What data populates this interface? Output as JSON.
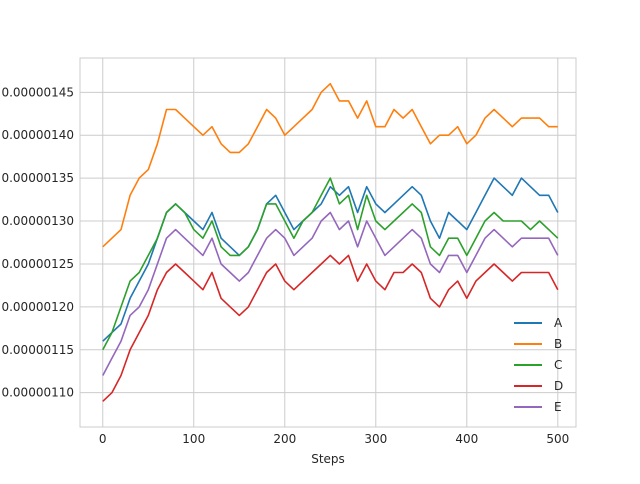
{
  "chart_data": {
    "type": "line",
    "title": "",
    "xlabel": "Steps",
    "ylabel": "",
    "xlim": [
      -25,
      520
    ],
    "ylim": [
      1.06e-06,
      1.49e-06
    ],
    "grid": true,
    "legend_position": "lower right",
    "x_ticks": [
      {
        "value": 0,
        "label": "0"
      },
      {
        "value": 100,
        "label": "100"
      },
      {
        "value": 200,
        "label": "200"
      },
      {
        "value": 300,
        "label": "300"
      },
      {
        "value": 400,
        "label": "400"
      },
      {
        "value": 500,
        "label": "500"
      }
    ],
    "y_ticks": [
      {
        "value": 1.1e-06,
        "label": "0.00000110"
      },
      {
        "value": 1.15e-06,
        "label": "0.00000115"
      },
      {
        "value": 1.2e-06,
        "label": "0.00000120"
      },
      {
        "value": 1.25e-06,
        "label": "0.00000125"
      },
      {
        "value": 1.3e-06,
        "label": "0.00000130"
      },
      {
        "value": 1.35e-06,
        "label": "0.00000135"
      },
      {
        "value": 1.4e-06,
        "label": "0.00000140"
      },
      {
        "value": 1.45e-06,
        "label": "0.00000145"
      }
    ],
    "series": [
      {
        "name": "A",
        "color": "#1f77b4",
        "x": [
          0,
          10,
          20,
          30,
          40,
          50,
          60,
          70,
          80,
          90,
          100,
          110,
          120,
          130,
          140,
          150,
          160,
          170,
          180,
          190,
          200,
          210,
          220,
          230,
          240,
          250,
          260,
          270,
          280,
          290,
          300,
          310,
          320,
          330,
          340,
          350,
          360,
          370,
          380,
          390,
          400,
          410,
          420,
          430,
          440,
          450,
          460,
          470,
          480,
          490,
          500
        ],
        "y": [
          1.16e-06,
          1.17e-06,
          1.18e-06,
          1.21e-06,
          1.23e-06,
          1.25e-06,
          1.28e-06,
          1.31e-06,
          1.32e-06,
          1.31e-06,
          1.3e-06,
          1.29e-06,
          1.31e-06,
          1.28e-06,
          1.27e-06,
          1.26e-06,
          1.27e-06,
          1.29e-06,
          1.32e-06,
          1.33e-06,
          1.31e-06,
          1.29e-06,
          1.3e-06,
          1.31e-06,
          1.32e-06,
          1.34e-06,
          1.33e-06,
          1.34e-06,
          1.31e-06,
          1.34e-06,
          1.32e-06,
          1.31e-06,
          1.32e-06,
          1.33e-06,
          1.34e-06,
          1.33e-06,
          1.3e-06,
          1.28e-06,
          1.31e-06,
          1.3e-06,
          1.29e-06,
          1.31e-06,
          1.33e-06,
          1.35e-06,
          1.34e-06,
          1.33e-06,
          1.35e-06,
          1.34e-06,
          1.33e-06,
          1.33e-06,
          1.31e-06
        ]
      },
      {
        "name": "B",
        "color": "#ff7f0e",
        "x": [
          0,
          10,
          20,
          30,
          40,
          50,
          60,
          70,
          80,
          90,
          100,
          110,
          120,
          130,
          140,
          150,
          160,
          170,
          180,
          190,
          200,
          210,
          220,
          230,
          240,
          250,
          260,
          270,
          280,
          290,
          300,
          310,
          320,
          330,
          340,
          350,
          360,
          370,
          380,
          390,
          400,
          410,
          420,
          430,
          440,
          450,
          460,
          470,
          480,
          490,
          500
        ],
        "y": [
          1.27e-06,
          1.28e-06,
          1.29e-06,
          1.33e-06,
          1.35e-06,
          1.36e-06,
          1.39e-06,
          1.43e-06,
          1.43e-06,
          1.42e-06,
          1.41e-06,
          1.4e-06,
          1.41e-06,
          1.39e-06,
          1.38e-06,
          1.38e-06,
          1.39e-06,
          1.41e-06,
          1.43e-06,
          1.42e-06,
          1.4e-06,
          1.41e-06,
          1.42e-06,
          1.43e-06,
          1.45e-06,
          1.46e-06,
          1.44e-06,
          1.44e-06,
          1.42e-06,
          1.44e-06,
          1.41e-06,
          1.41e-06,
          1.43e-06,
          1.42e-06,
          1.43e-06,
          1.41e-06,
          1.39e-06,
          1.4e-06,
          1.4e-06,
          1.41e-06,
          1.39e-06,
          1.4e-06,
          1.42e-06,
          1.43e-06,
          1.42e-06,
          1.41e-06,
          1.42e-06,
          1.42e-06,
          1.42e-06,
          1.41e-06,
          1.41e-06
        ]
      },
      {
        "name": "C",
        "color": "#2ca02c",
        "x": [
          0,
          10,
          20,
          30,
          40,
          50,
          60,
          70,
          80,
          90,
          100,
          110,
          120,
          130,
          140,
          150,
          160,
          170,
          180,
          190,
          200,
          210,
          220,
          230,
          240,
          250,
          260,
          270,
          280,
          290,
          300,
          310,
          320,
          330,
          340,
          350,
          360,
          370,
          380,
          390,
          400,
          410,
          420,
          430,
          440,
          450,
          460,
          470,
          480,
          490,
          500
        ],
        "y": [
          1.15e-06,
          1.17e-06,
          1.2e-06,
          1.23e-06,
          1.24e-06,
          1.26e-06,
          1.28e-06,
          1.31e-06,
          1.32e-06,
          1.31e-06,
          1.29e-06,
          1.28e-06,
          1.3e-06,
          1.27e-06,
          1.26e-06,
          1.26e-06,
          1.27e-06,
          1.29e-06,
          1.32e-06,
          1.32e-06,
          1.3e-06,
          1.28e-06,
          1.3e-06,
          1.31e-06,
          1.33e-06,
          1.35e-06,
          1.32e-06,
          1.33e-06,
          1.29e-06,
          1.33e-06,
          1.3e-06,
          1.29e-06,
          1.3e-06,
          1.31e-06,
          1.32e-06,
          1.31e-06,
          1.27e-06,
          1.26e-06,
          1.28e-06,
          1.28e-06,
          1.26e-06,
          1.28e-06,
          1.3e-06,
          1.31e-06,
          1.3e-06,
          1.3e-06,
          1.3e-06,
          1.29e-06,
          1.3e-06,
          1.29e-06,
          1.28e-06
        ]
      },
      {
        "name": "D",
        "color": "#d62728",
        "x": [
          0,
          10,
          20,
          30,
          40,
          50,
          60,
          70,
          80,
          90,
          100,
          110,
          120,
          130,
          140,
          150,
          160,
          170,
          180,
          190,
          200,
          210,
          220,
          230,
          240,
          250,
          260,
          270,
          280,
          290,
          300,
          310,
          320,
          330,
          340,
          350,
          360,
          370,
          380,
          390,
          400,
          410,
          420,
          430,
          440,
          450,
          460,
          470,
          480,
          490,
          500
        ],
        "y": [
          1.09e-06,
          1.1e-06,
          1.12e-06,
          1.15e-06,
          1.17e-06,
          1.19e-06,
          1.22e-06,
          1.24e-06,
          1.25e-06,
          1.24e-06,
          1.23e-06,
          1.22e-06,
          1.24e-06,
          1.21e-06,
          1.2e-06,
          1.19e-06,
          1.2e-06,
          1.22e-06,
          1.24e-06,
          1.25e-06,
          1.23e-06,
          1.22e-06,
          1.23e-06,
          1.24e-06,
          1.25e-06,
          1.26e-06,
          1.25e-06,
          1.26e-06,
          1.23e-06,
          1.25e-06,
          1.23e-06,
          1.22e-06,
          1.24e-06,
          1.24e-06,
          1.25e-06,
          1.24e-06,
          1.21e-06,
          1.2e-06,
          1.22e-06,
          1.23e-06,
          1.21e-06,
          1.23e-06,
          1.24e-06,
          1.25e-06,
          1.24e-06,
          1.23e-06,
          1.24e-06,
          1.24e-06,
          1.24e-06,
          1.24e-06,
          1.22e-06
        ]
      },
      {
        "name": "E",
        "color": "#9467bd",
        "x": [
          0,
          10,
          20,
          30,
          40,
          50,
          60,
          70,
          80,
          90,
          100,
          110,
          120,
          130,
          140,
          150,
          160,
          170,
          180,
          190,
          200,
          210,
          220,
          230,
          240,
          250,
          260,
          270,
          280,
          290,
          300,
          310,
          320,
          330,
          340,
          350,
          360,
          370,
          380,
          390,
          400,
          410,
          420,
          430,
          440,
          450,
          460,
          470,
          480,
          490,
          500
        ],
        "y": [
          1.12e-06,
          1.14e-06,
          1.16e-06,
          1.19e-06,
          1.2e-06,
          1.22e-06,
          1.25e-06,
          1.28e-06,
          1.29e-06,
          1.28e-06,
          1.27e-06,
          1.26e-06,
          1.28e-06,
          1.25e-06,
          1.24e-06,
          1.23e-06,
          1.24e-06,
          1.26e-06,
          1.28e-06,
          1.29e-06,
          1.28e-06,
          1.26e-06,
          1.27e-06,
          1.28e-06,
          1.3e-06,
          1.31e-06,
          1.29e-06,
          1.3e-06,
          1.27e-06,
          1.3e-06,
          1.28e-06,
          1.26e-06,
          1.27e-06,
          1.28e-06,
          1.29e-06,
          1.28e-06,
          1.25e-06,
          1.24e-06,
          1.26e-06,
          1.26e-06,
          1.24e-06,
          1.26e-06,
          1.28e-06,
          1.29e-06,
          1.28e-06,
          1.27e-06,
          1.28e-06,
          1.28e-06,
          1.28e-06,
          1.28e-06,
          1.26e-06
        ]
      }
    ]
  }
}
